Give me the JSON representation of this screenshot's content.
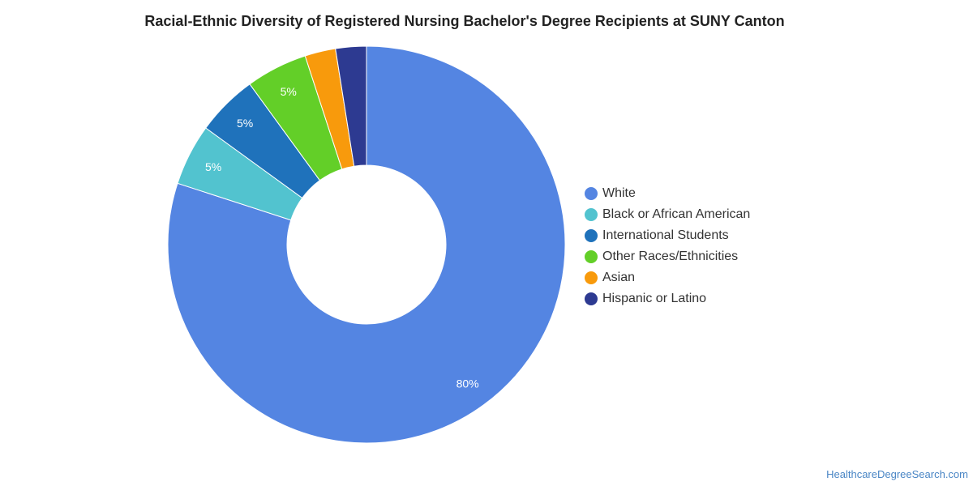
{
  "chart_data": {
    "type": "pie",
    "title": "Racial-Ethnic Diversity of Registered Nursing Bachelor's Degree Recipients at SUNY Canton",
    "donut": true,
    "legend_position": "right",
    "categories": [
      "White",
      "Black or African American",
      "International Students",
      "Other Races/Ethnicities",
      "Asian",
      "Hispanic or Latino"
    ],
    "values": [
      80,
      5,
      5,
      5,
      2.5,
      2.5
    ],
    "data_labels": [
      "80%",
      "5%",
      "5%",
      "5%",
      "",
      ""
    ],
    "colors": [
      "#5485e2",
      "#52c3cf",
      "#1f72bb",
      "#63cf28",
      "#f89a0c",
      "#2d3a91"
    ]
  },
  "source": "HealthcareDegreeSearch.com"
}
